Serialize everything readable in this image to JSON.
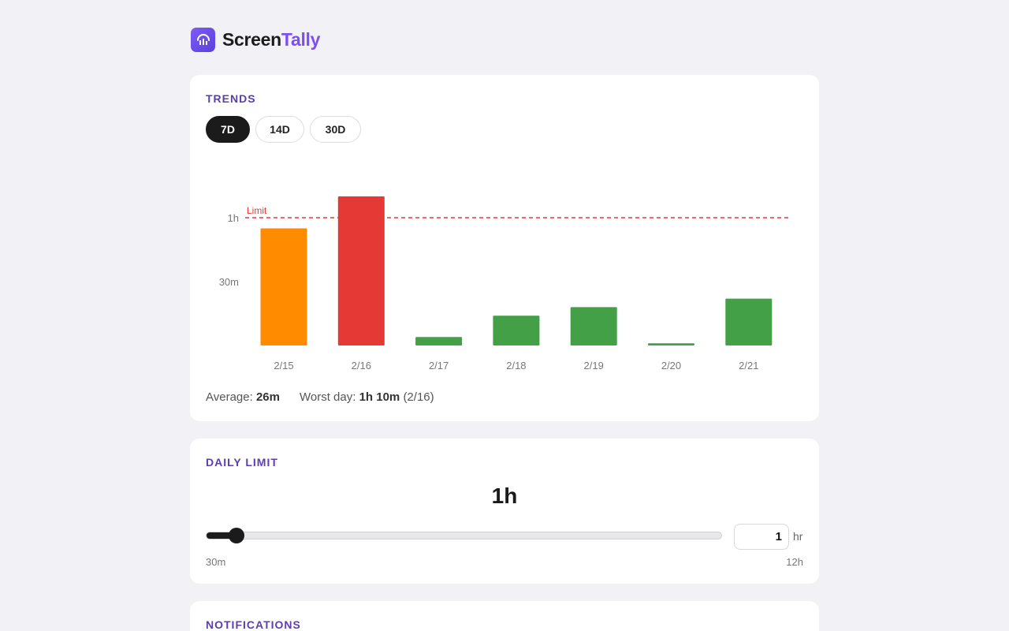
{
  "app": {
    "name_part1": "Screen",
    "name_part2": "Tally",
    "icon": "bar-chart-icon"
  },
  "trends": {
    "title": "TRENDS",
    "tabs": [
      {
        "label": "7D",
        "active": true
      },
      {
        "label": "14D",
        "active": false
      },
      {
        "label": "30D",
        "active": false
      }
    ],
    "summary": {
      "average_label": "Average:",
      "average_value": "26m",
      "worst_label": "Worst day:",
      "worst_value": "1h 10m",
      "worst_date": "(2/16)"
    }
  },
  "chart_data": {
    "type": "bar",
    "categories": [
      "2/15",
      "2/16",
      "2/17",
      "2/18",
      "2/19",
      "2/20",
      "2/21"
    ],
    "values_minutes": [
      55,
      70,
      4,
      14,
      18,
      1,
      22
    ],
    "bar_colors": [
      "#ff8c00",
      "#e53935",
      "#43a047",
      "#43a047",
      "#43a047",
      "#43a047",
      "#43a047"
    ],
    "y_ticks": [
      {
        "value": 30,
        "label": "30m"
      },
      {
        "value": 60,
        "label": "1h"
      }
    ],
    "limit_line": {
      "value": 60,
      "label": "Limit",
      "color": "#e53935"
    },
    "ylim": [
      0,
      70
    ]
  },
  "daily_limit": {
    "title": "DAILY LIMIT",
    "value_display": "1h",
    "slider": {
      "min_label": "30m",
      "max_label": "12h",
      "min_hours": 0.5,
      "max_hours": 12,
      "value_hours": 1
    },
    "input_value": "1",
    "unit": "hr"
  },
  "notifications": {
    "title": "NOTIFICATIONS"
  }
}
